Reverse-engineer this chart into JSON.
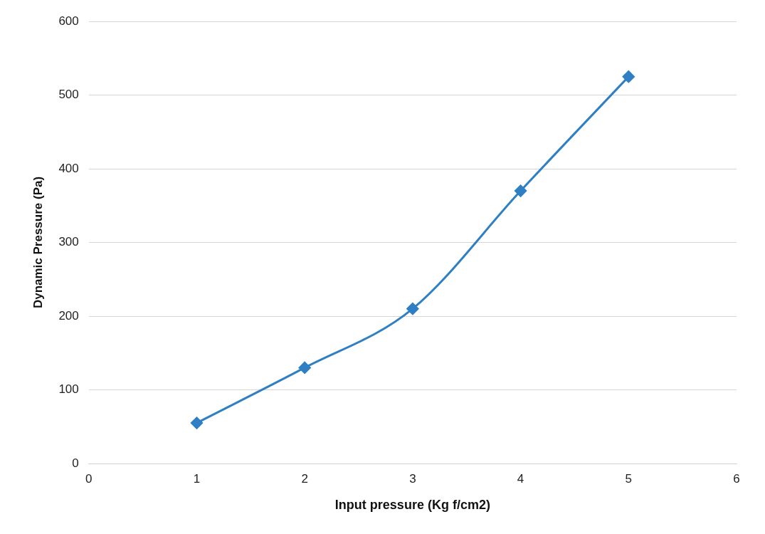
{
  "chart_data": {
    "type": "line",
    "xlabel": "Input pressure (Kg f/cm2)",
    "ylabel": "Dynamic Pressure (Pa)",
    "x": [
      1,
      2,
      3,
      4,
      5
    ],
    "series": [
      {
        "color": "#2f7fc4",
        "values": [
          55,
          130,
          210,
          370,
          525
        ]
      }
    ],
    "xlim": [
      0,
      6
    ],
    "xticks": [
      0,
      1,
      2,
      3,
      4,
      5,
      6
    ],
    "ylim": [
      0,
      600
    ],
    "yticks": [
      0,
      100,
      200,
      300,
      400,
      500,
      600
    ],
    "grid": "y",
    "legend": false,
    "marker": "diamond",
    "line_style": "solid"
  }
}
